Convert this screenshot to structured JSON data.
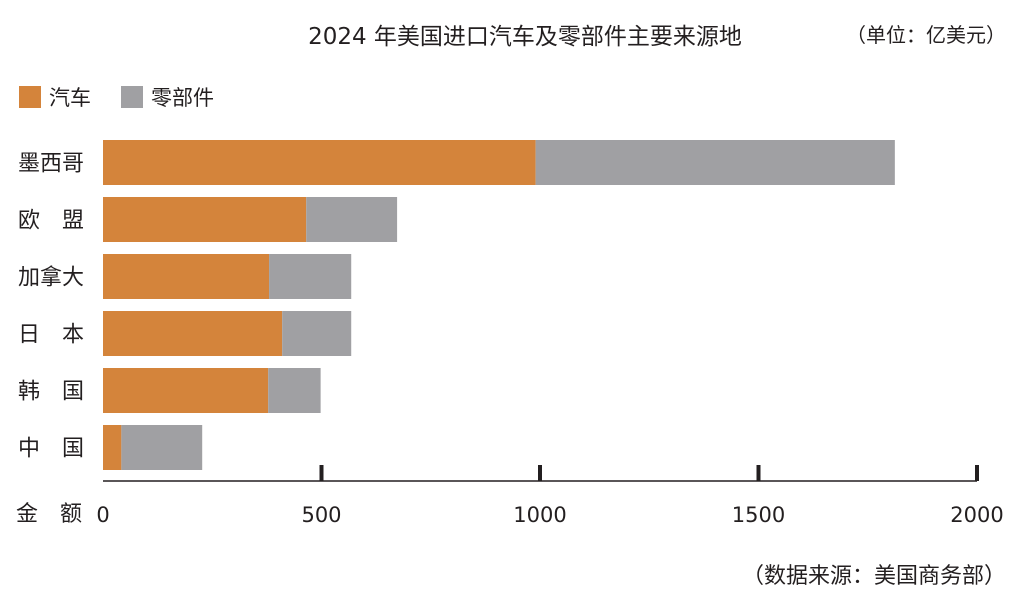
{
  "chart_data": {
    "type": "bar",
    "orientation": "horizontal",
    "stacked": true,
    "title": "2024 年美国进口汽车及零部件主要来源地",
    "unit": "（单位：亿美元）",
    "source": "（数据来源：美国商务部）",
    "xlabel": "金　额",
    "xlim": [
      0,
      2000
    ],
    "xticks": [
      0,
      500,
      1000,
      1500,
      2000
    ],
    "grid": false,
    "legend_position": "top-left",
    "categories": [
      "墨西哥",
      "欧　盟",
      "加拿大",
      "日　本",
      "韩　国",
      "中　国"
    ],
    "series": [
      {
        "name": "汽车",
        "color": "#d4843b",
        "values": [
          990,
          465,
          380,
          410,
          378,
          42
        ]
      },
      {
        "name": "零部件",
        "color": "#a0a0a3",
        "values": [
          822,
          208,
          188,
          158,
          120,
          185
        ]
      }
    ]
  }
}
